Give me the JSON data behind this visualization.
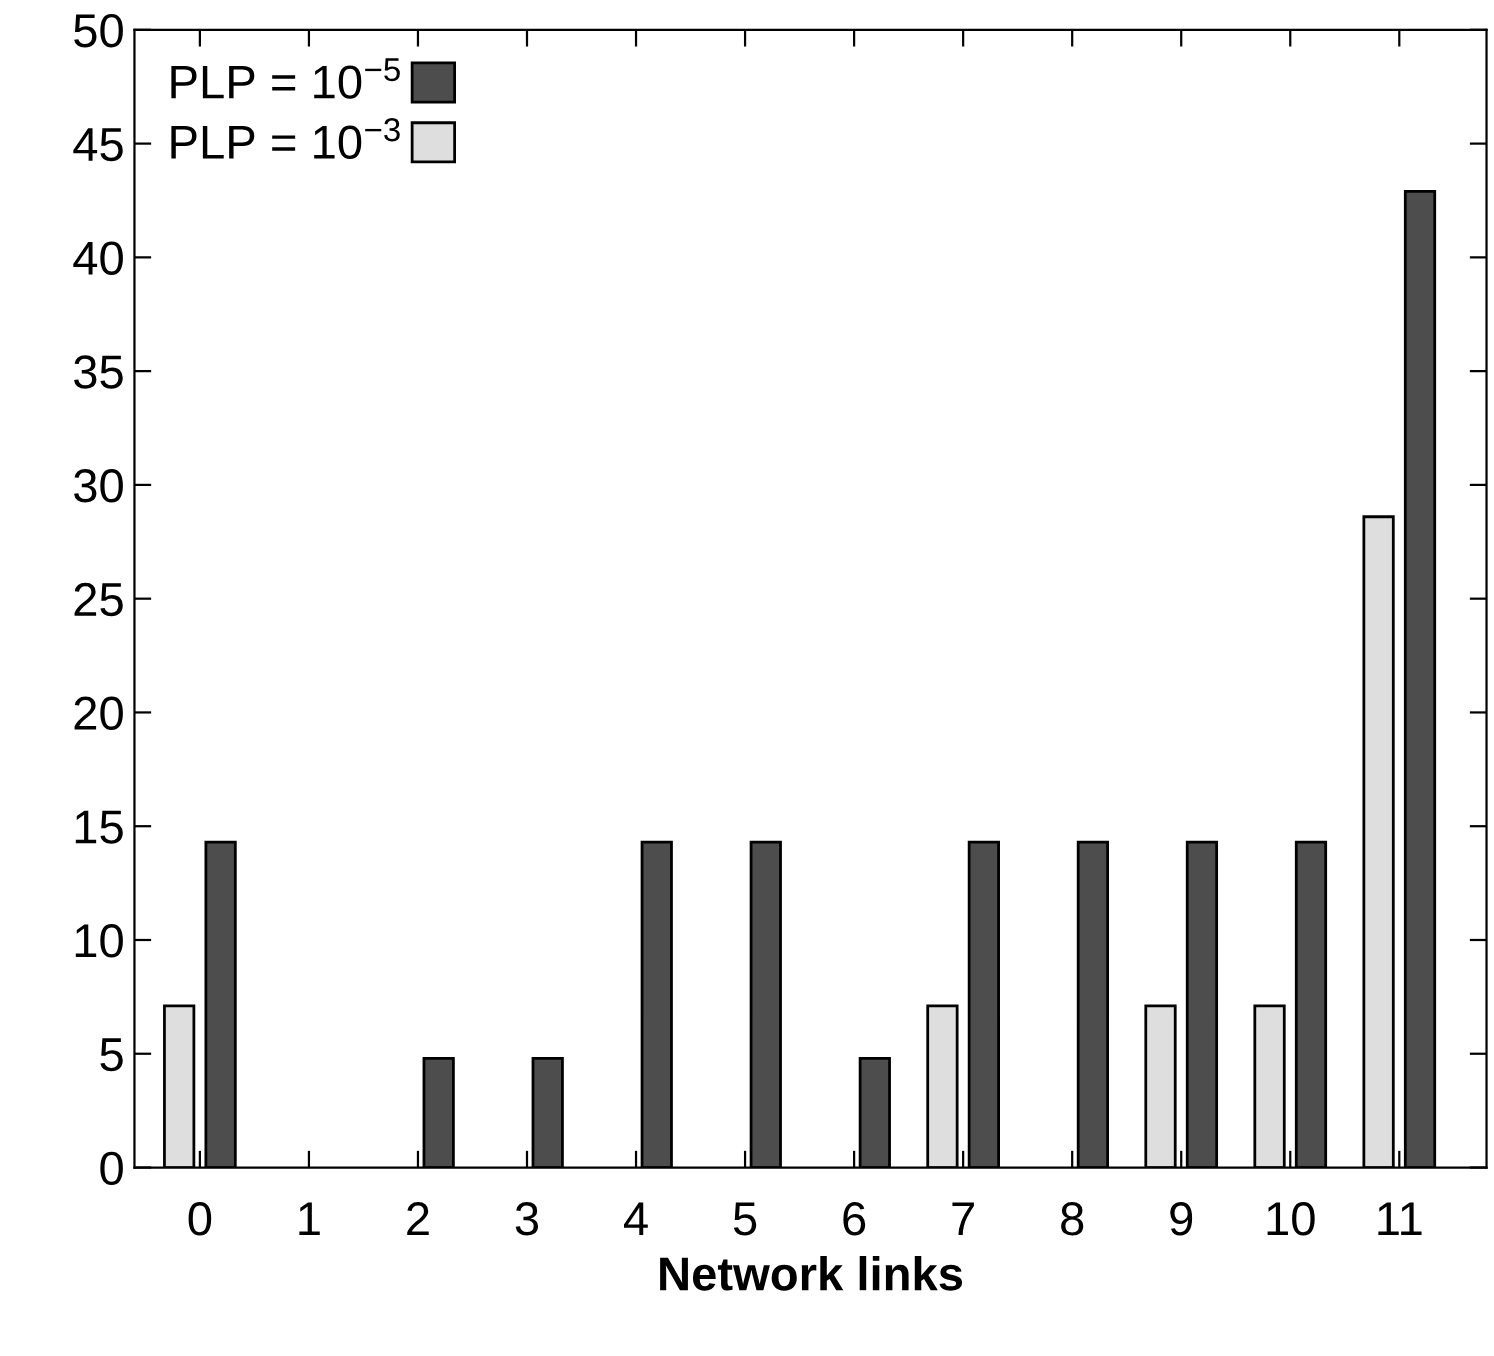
{
  "chart_data": {
    "type": "bar",
    "xlabel": "Network links",
    "categories": [
      "0",
      "1",
      "2",
      "3",
      "4",
      "5",
      "6",
      "7",
      "8",
      "9",
      "10",
      "11"
    ],
    "series": [
      {
        "name": "PLP = 10$^{−3}$",
        "color": "#dedede",
        "values": [
          7.1,
          0,
          0,
          0,
          0,
          0,
          0,
          7.1,
          0,
          7.1,
          7.1,
          28.6
        ]
      },
      {
        "name": "PLP = 10$^{−5}$",
        "color": "#4d4d4d",
        "values": [
          14.3,
          0,
          4.8,
          4.8,
          14.3,
          14.3,
          4.8,
          14.3,
          14.3,
          14.3,
          14.3,
          42.9
        ]
      }
    ],
    "ylim": [
      0,
      50
    ],
    "yticks": [
      0,
      5,
      10,
      15,
      20,
      25,
      30,
      35,
      40,
      45,
      50
    ],
    "grid": false,
    "legend": "top left"
  }
}
